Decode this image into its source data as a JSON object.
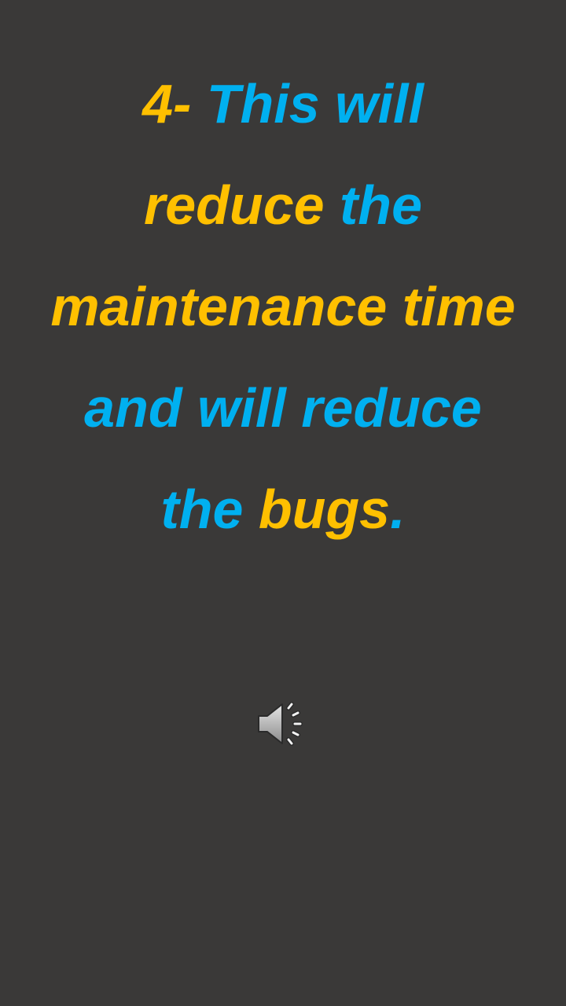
{
  "slide": {
    "lines": [
      [
        {
          "text": "4- ",
          "color": "yellow"
        },
        {
          "text": "This will",
          "color": "blue"
        }
      ],
      [
        {
          "text": "reduce ",
          "color": "yellow"
        },
        {
          "text": "the",
          "color": "blue"
        }
      ],
      [
        {
          "text": "maintenance time",
          "color": "yellow"
        }
      ],
      [
        {
          "text": "and will reduce",
          "color": "blue"
        }
      ],
      [
        {
          "text": "the ",
          "color": "blue"
        },
        {
          "text": "bugs",
          "color": "yellow"
        },
        {
          "text": ".",
          "color": "blue"
        }
      ]
    ]
  },
  "colors": {
    "background": "#3a3938",
    "yellow": "#ffc000",
    "blue": "#00b0f0"
  },
  "audio": {
    "icon": "speaker-icon"
  }
}
